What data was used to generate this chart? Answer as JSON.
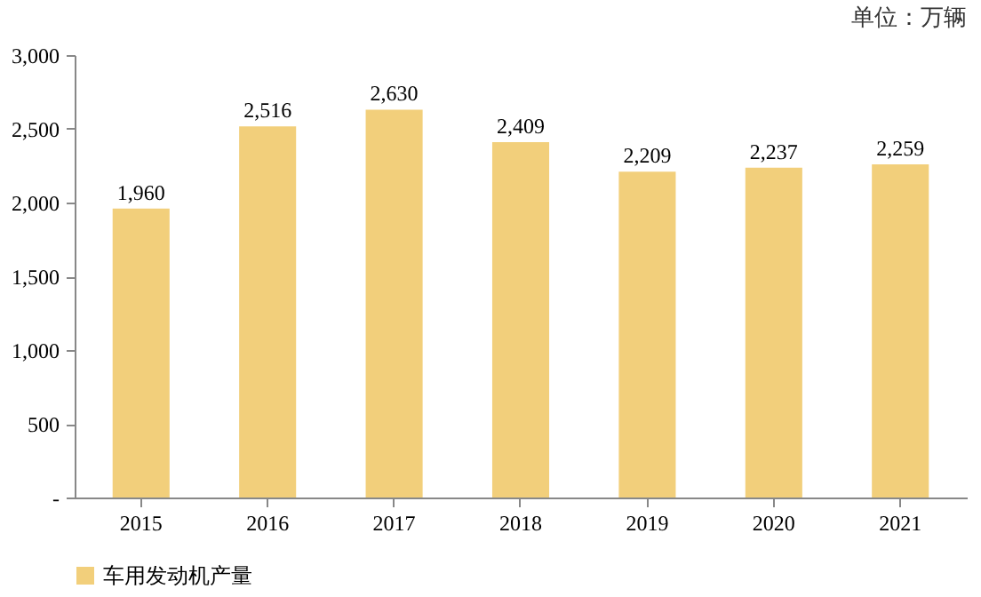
{
  "chart_data": {
    "type": "bar",
    "annotations": [
      "单位：万辆"
    ],
    "categories": [
      "2015",
      "2016",
      "2017",
      "2018",
      "2019",
      "2020",
      "2021"
    ],
    "series": [
      {
        "name": "车用发动机产量",
        "color": "#f2cf7b",
        "values": [
          1960,
          2516,
          2630,
          2409,
          2209,
          2237,
          2259
        ],
        "value_labels": [
          "1,960",
          "2,516",
          "2,630",
          "2,409",
          "2,209",
          "2,237",
          "2,259"
        ]
      }
    ],
    "ylim": [
      0,
      3000
    ],
    "yticks": [
      {
        "value": 0,
        "label": "-"
      },
      {
        "value": 500,
        "label": "500"
      },
      {
        "value": 1000,
        "label": "1,000"
      },
      {
        "value": 1500,
        "label": "1,500"
      },
      {
        "value": 2000,
        "label": "2,000"
      },
      {
        "value": 2500,
        "label": "2,500"
      },
      {
        "value": 3000,
        "label": "3,000"
      }
    ],
    "grid": false,
    "legend": "bottom"
  }
}
